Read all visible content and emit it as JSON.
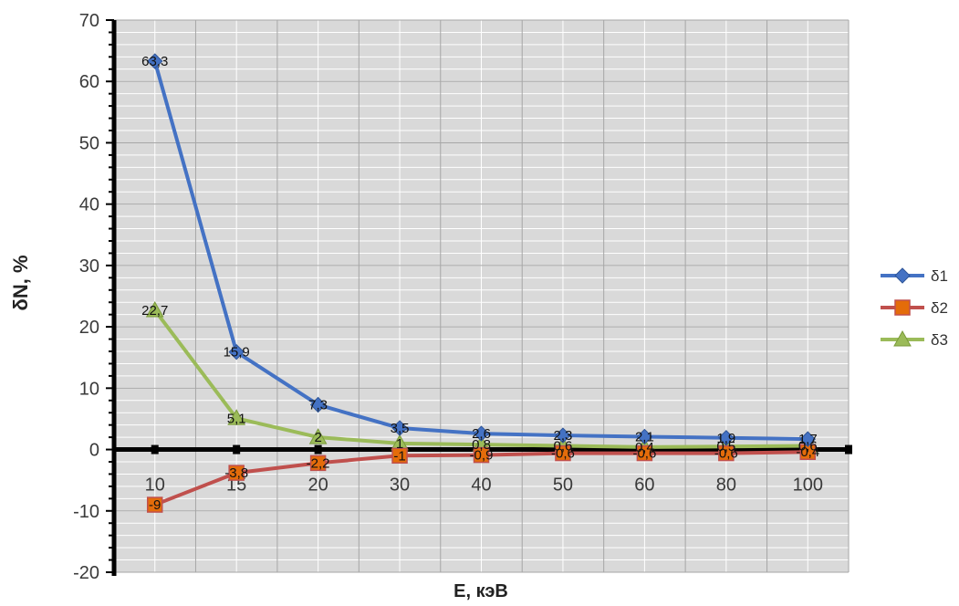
{
  "chart_data": {
    "type": "line",
    "title": "",
    "xlabel": "E, кэВ",
    "ylabel": "δN, %",
    "categories": [
      "10",
      "15",
      "20",
      "30",
      "40",
      "50",
      "60",
      "80",
      "100"
    ],
    "ylim": [
      -20,
      70
    ],
    "yticks": [
      "-20",
      "-10",
      "0",
      "10",
      "20",
      "30",
      "40",
      "50",
      "60",
      "70"
    ],
    "grid": true,
    "legend_position": "right",
    "series": [
      {
        "name": "δ1",
        "color": "#4472c4",
        "marker": "diamond",
        "values": [
          63.3,
          15.9,
          7.3,
          3.5,
          2.6,
          2.3,
          2.1,
          1.9,
          1.7
        ],
        "labels": [
          "63,3",
          "15,9",
          "7,3",
          "3,5",
          "2,6",
          "2,3",
          "2,1",
          "1,9",
          "1,7"
        ]
      },
      {
        "name": "δ2",
        "color": "#c0504d",
        "marker": "square",
        "values": [
          -9,
          -3.8,
          -2.2,
          -1,
          -0.9,
          -0.6,
          -0.6,
          -0.6,
          -0.4
        ],
        "labels": [
          "-9",
          "-3,8",
          "-2,2",
          "-1",
          "-0,9",
          "-0,6",
          "-0,6",
          "-0,6",
          "-0,4"
        ]
      },
      {
        "name": "δ3",
        "color": "#9bbb59",
        "marker": "triangle",
        "values": [
          22.7,
          5.1,
          2,
          1,
          0.8,
          0.6,
          0.4,
          0.5,
          0.6
        ],
        "labels": [
          "22,7",
          "5,1",
          "2",
          "1",
          "0,8",
          "0,6",
          "0,4",
          "0,5",
          "0,6"
        ]
      }
    ]
  }
}
